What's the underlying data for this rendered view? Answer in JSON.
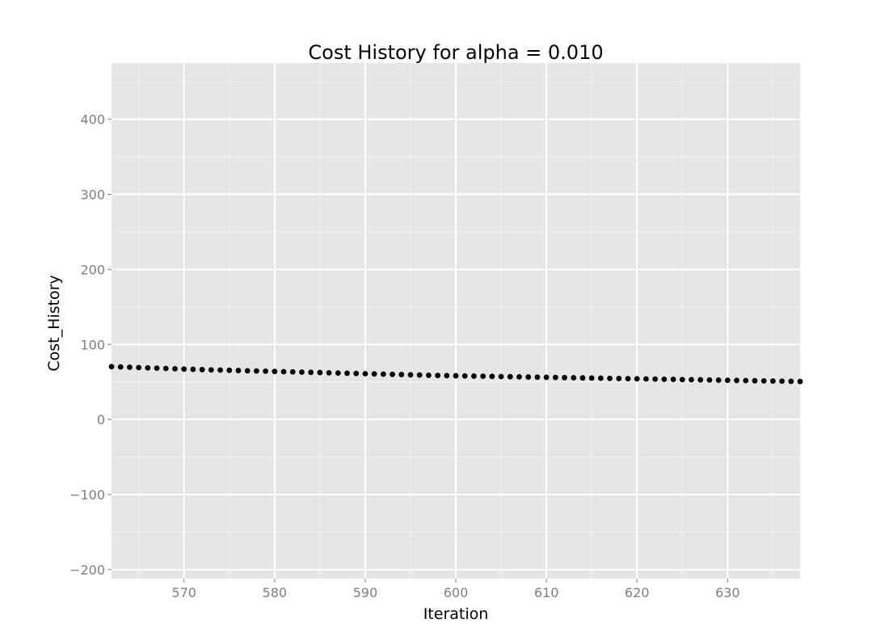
{
  "chart_data": {
    "type": "scatter",
    "title": "Cost History for alpha = 0.010",
    "xlabel": "Iteration",
    "ylabel": "Cost_History",
    "xlim": [
      562,
      638
    ],
    "ylim": [
      -212,
      475
    ],
    "x_ticks": [
      570,
      580,
      590,
      600,
      610,
      620,
      630
    ],
    "y_ticks": [
      -200,
      -100,
      0,
      100,
      200,
      300,
      400
    ],
    "x_tick_labels": [
      "570",
      "580",
      "590",
      "600",
      "610",
      "620",
      "630"
    ],
    "y_tick_labels": [
      "−200",
      "−100",
      "0",
      "100",
      "200",
      "300",
      "400"
    ],
    "grid": true,
    "legend": "none",
    "series": [
      {
        "x_start": 562,
        "x_step": 1,
        "y": [
          70.4,
          70.0,
          69.6,
          69.2,
          68.8,
          68.4,
          68.0,
          67.6,
          67.2,
          66.8,
          66.4,
          66.1,
          65.8,
          65.5,
          65.2,
          64.9,
          64.6,
          64.3,
          64.0,
          63.7,
          63.4,
          63.1,
          62.8,
          62.5,
          62.2,
          61.9,
          61.6,
          61.3,
          61.0,
          60.7,
          60.4,
          60.1,
          59.8,
          59.5,
          59.2,
          58.9,
          58.6,
          58.4,
          58.2,
          58.0,
          57.8,
          57.6,
          57.4,
          57.2,
          57.0,
          56.8,
          56.6,
          56.4,
          56.2,
          56.0,
          55.8,
          55.6,
          55.4,
          55.2,
          55.0,
          54.8,
          54.6,
          54.4,
          54.2,
          54.0,
          53.8,
          53.6,
          53.4,
          53.2,
          53.0,
          52.8,
          52.6,
          52.4,
          52.2,
          52.0,
          51.8,
          51.6,
          51.4,
          51.2,
          51.0,
          50.8,
          50.6
        ],
        "color": "#000000"
      }
    ]
  },
  "style": {
    "panel_background": "#e5e5e5",
    "grid_major": "#ffffff",
    "grid_minor": "#f2f2f2",
    "point_color": "#000000",
    "tick_color": "#7f7f7f"
  }
}
